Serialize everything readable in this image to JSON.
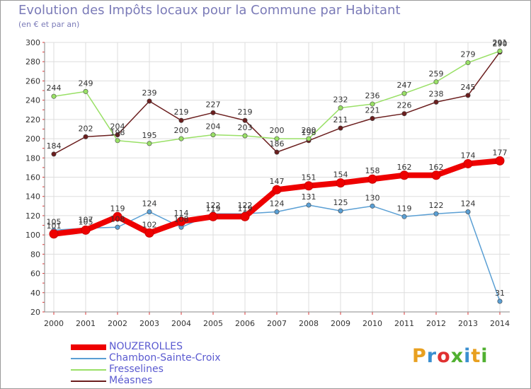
{
  "header": {
    "title": "Evolution des Impôts locaux pour la Commune par Habitant",
    "subtitle": "(en € et par an)"
  },
  "logo": {
    "text": "Proxiti",
    "colors": [
      "#e8a020",
      "#3a8fd0",
      "#e03030",
      "#50b030",
      "#3a8fd0",
      "#e8a020",
      "#50b030"
    ]
  },
  "chart_data": {
    "type": "line",
    "x": [
      "2000",
      "2001",
      "2002",
      "2003",
      "2004",
      "2005",
      "2006",
      "2007",
      "2008",
      "2009",
      "2010",
      "2011",
      "2012",
      "2013",
      "2014"
    ],
    "ylim": [
      20,
      300
    ],
    "yticks": [
      20,
      40,
      60,
      80,
      100,
      120,
      140,
      160,
      180,
      200,
      220,
      240,
      260,
      280,
      300
    ],
    "grid": true,
    "legend_position": "bottom-left",
    "series": [
      {
        "name": "Méasnes",
        "color": "#6b1e1e",
        "values": [
          184,
          202,
          204,
          239,
          219,
          227,
          219,
          186,
          198,
          211,
          221,
          226,
          238,
          245,
          290
        ]
      },
      {
        "name": "Fresselines",
        "color": "#99e066",
        "values": [
          244,
          249,
          198,
          195,
          200,
          204,
          203,
          200,
          200,
          232,
          236,
          247,
          259,
          279,
          291
        ]
      },
      {
        "name": "Chambon-Sainte-Croix",
        "color": "#5a9fd4",
        "values": [
          105,
          107,
          108,
          124,
          108,
          122,
          122,
          124,
          131,
          125,
          130,
          119,
          122,
          124,
          31
        ]
      },
      {
        "name": "NOUZEROLLES",
        "color": "#ee0000",
        "values": [
          101,
          105,
          119,
          102,
          114,
          119,
          119,
          147,
          151,
          154,
          158,
          162,
          162,
          174,
          177
        ]
      }
    ]
  }
}
